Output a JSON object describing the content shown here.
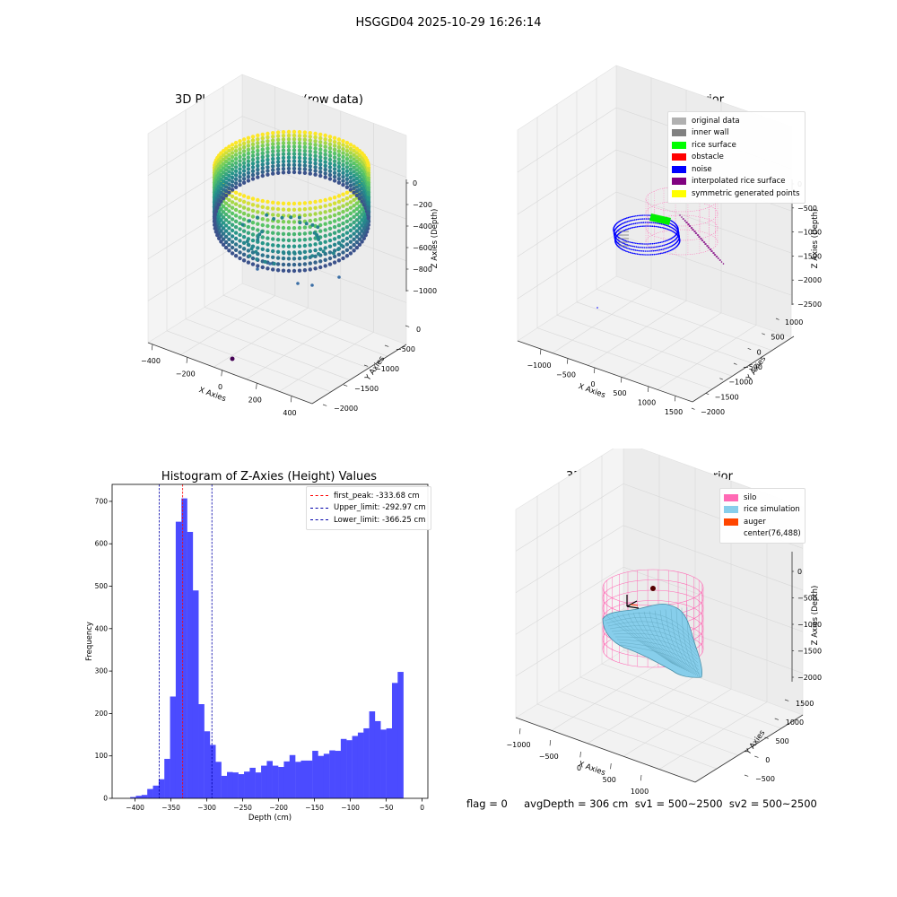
{
  "suptitle": "HSGGD04 2025-10-29 16:26:14",
  "status_line": "flag = 0     avgDepth = 306 cm  sv1 = 500~2500  sv2 = 500~2500",
  "colors": {
    "hist_bar": "#4b4bff",
    "first_peak": "#ff0000",
    "limit": "#0000aa",
    "silo": "#ff69b4",
    "rice_simulation": "#87ceeb",
    "auger": "#ff4500"
  },
  "chart_data": [
    {
      "type": "scatter",
      "subtype": "3d",
      "title": "3D Plot of Silo Interior(row data)",
      "xlabel": "X Axies",
      "ylabel": "Y Axies",
      "zlabel": "Z Axies (Depth)",
      "x_ticks": [
        "−400",
        "−200",
        "0",
        "200",
        "400"
      ],
      "y_ticks": [
        "0",
        "−500",
        "−1000",
        "−1500",
        "−2000"
      ],
      "z_ticks": [
        "0",
        "−200",
        "−400",
        "−600",
        "−800",
        "−1000"
      ],
      "colormap": "viridis",
      "grid": true
    },
    {
      "type": "scatter",
      "subtype": "3d",
      "title": "3D classify of Silo Interior",
      "xlabel": "X Axies",
      "ylabel": "Y Axies",
      "zlabel": "Z Axies (Depth)",
      "x_ticks": [
        "−1000",
        "−500",
        "0",
        "500",
        "1000",
        "1500"
      ],
      "y_ticks": [
        "1000",
        "500",
        "0",
        "−500",
        "−1000",
        "−1500",
        "−2000"
      ],
      "z_ticks": [
        "0",
        "−500",
        "−1000",
        "−1500",
        "−2000",
        "−2500"
      ],
      "legend": [
        {
          "label": "original data",
          "color": "#b0b0b0"
        },
        {
          "label": "inner wall",
          "color": "#808080"
        },
        {
          "label": "rice surface",
          "color": "#00ff00"
        },
        {
          "label": "obstacle",
          "color": "#ff0000"
        },
        {
          "label": "noise",
          "color": "#0000ff"
        },
        {
          "label": "interpolated rice surface",
          "color": "#800080"
        },
        {
          "label": "symmetric generated points",
          "color": "#ffff00"
        }
      ],
      "legend_position": "top-right",
      "grid": true
    },
    {
      "type": "bar",
      "subtype": "histogram",
      "title": "Histogram of Z-Axies (Height) Values",
      "xlabel": "Depth (cm)",
      "ylabel": "Frequency",
      "xlim": [
        -432,
        8
      ],
      "ylim": [
        0,
        740
      ],
      "x_ticks": [
        -400,
        -350,
        -300,
        -250,
        -200,
        -150,
        -100,
        -50,
        0
      ],
      "x_tick_labels": [
        "−400",
        "−350",
        "−300",
        "−250",
        "−200",
        "−150",
        "−100",
        "−50",
        "0"
      ],
      "y_ticks": [
        0,
        100,
        200,
        300,
        400,
        500,
        600,
        700
      ],
      "bin_start": -406.8,
      "bin_width": 7.93,
      "values": [
        3,
        6,
        8,
        22,
        30,
        45,
        93,
        240,
        652,
        707,
        628,
        490,
        222,
        158,
        126,
        86,
        53,
        62,
        61,
        57,
        63,
        72,
        61,
        77,
        88,
        77,
        74,
        87,
        102,
        86,
        89,
        89,
        112,
        100,
        105,
        113,
        112,
        140,
        137,
        147,
        155,
        165,
        205,
        182,
        162,
        165,
        272,
        298
      ],
      "lines": [
        {
          "label": "first_peak: -333.68 cm",
          "x": -333.68,
          "color": "#ff0000"
        },
        {
          "label": "Upper_limit: -292.97 cm",
          "x": -292.97,
          "color": "#0000aa"
        },
        {
          "label": "Lower_limit: -366.25 cm",
          "x": -366.25,
          "color": "#0000aa"
        }
      ],
      "legend_position": "top-right",
      "grid": false
    },
    {
      "type": "scatter",
      "subtype": "3d-surface",
      "title": "3D simulation of Silo Interior",
      "xlabel": "X Axies",
      "ylabel": "Y Axies",
      "zlabel": "Z Axies (Depth)",
      "x_ticks": [
        "−1000",
        "−500",
        "0",
        "500",
        "1000"
      ],
      "y_ticks": [
        "1500",
        "1000",
        "500",
        "0",
        "−500"
      ],
      "z_ticks": [
        "0",
        "−500",
        "−1000",
        "−1500",
        "−2000"
      ],
      "legend": [
        {
          "label": "silo",
          "color": "#ff69b4"
        },
        {
          "label": "rice simulation",
          "color": "#87ceeb"
        },
        {
          "label": "auger",
          "color": "#ff4500"
        },
        {
          "label": "center(76,488)",
          "color": ""
        }
      ],
      "legend_position": "top-right",
      "grid": true
    }
  ]
}
